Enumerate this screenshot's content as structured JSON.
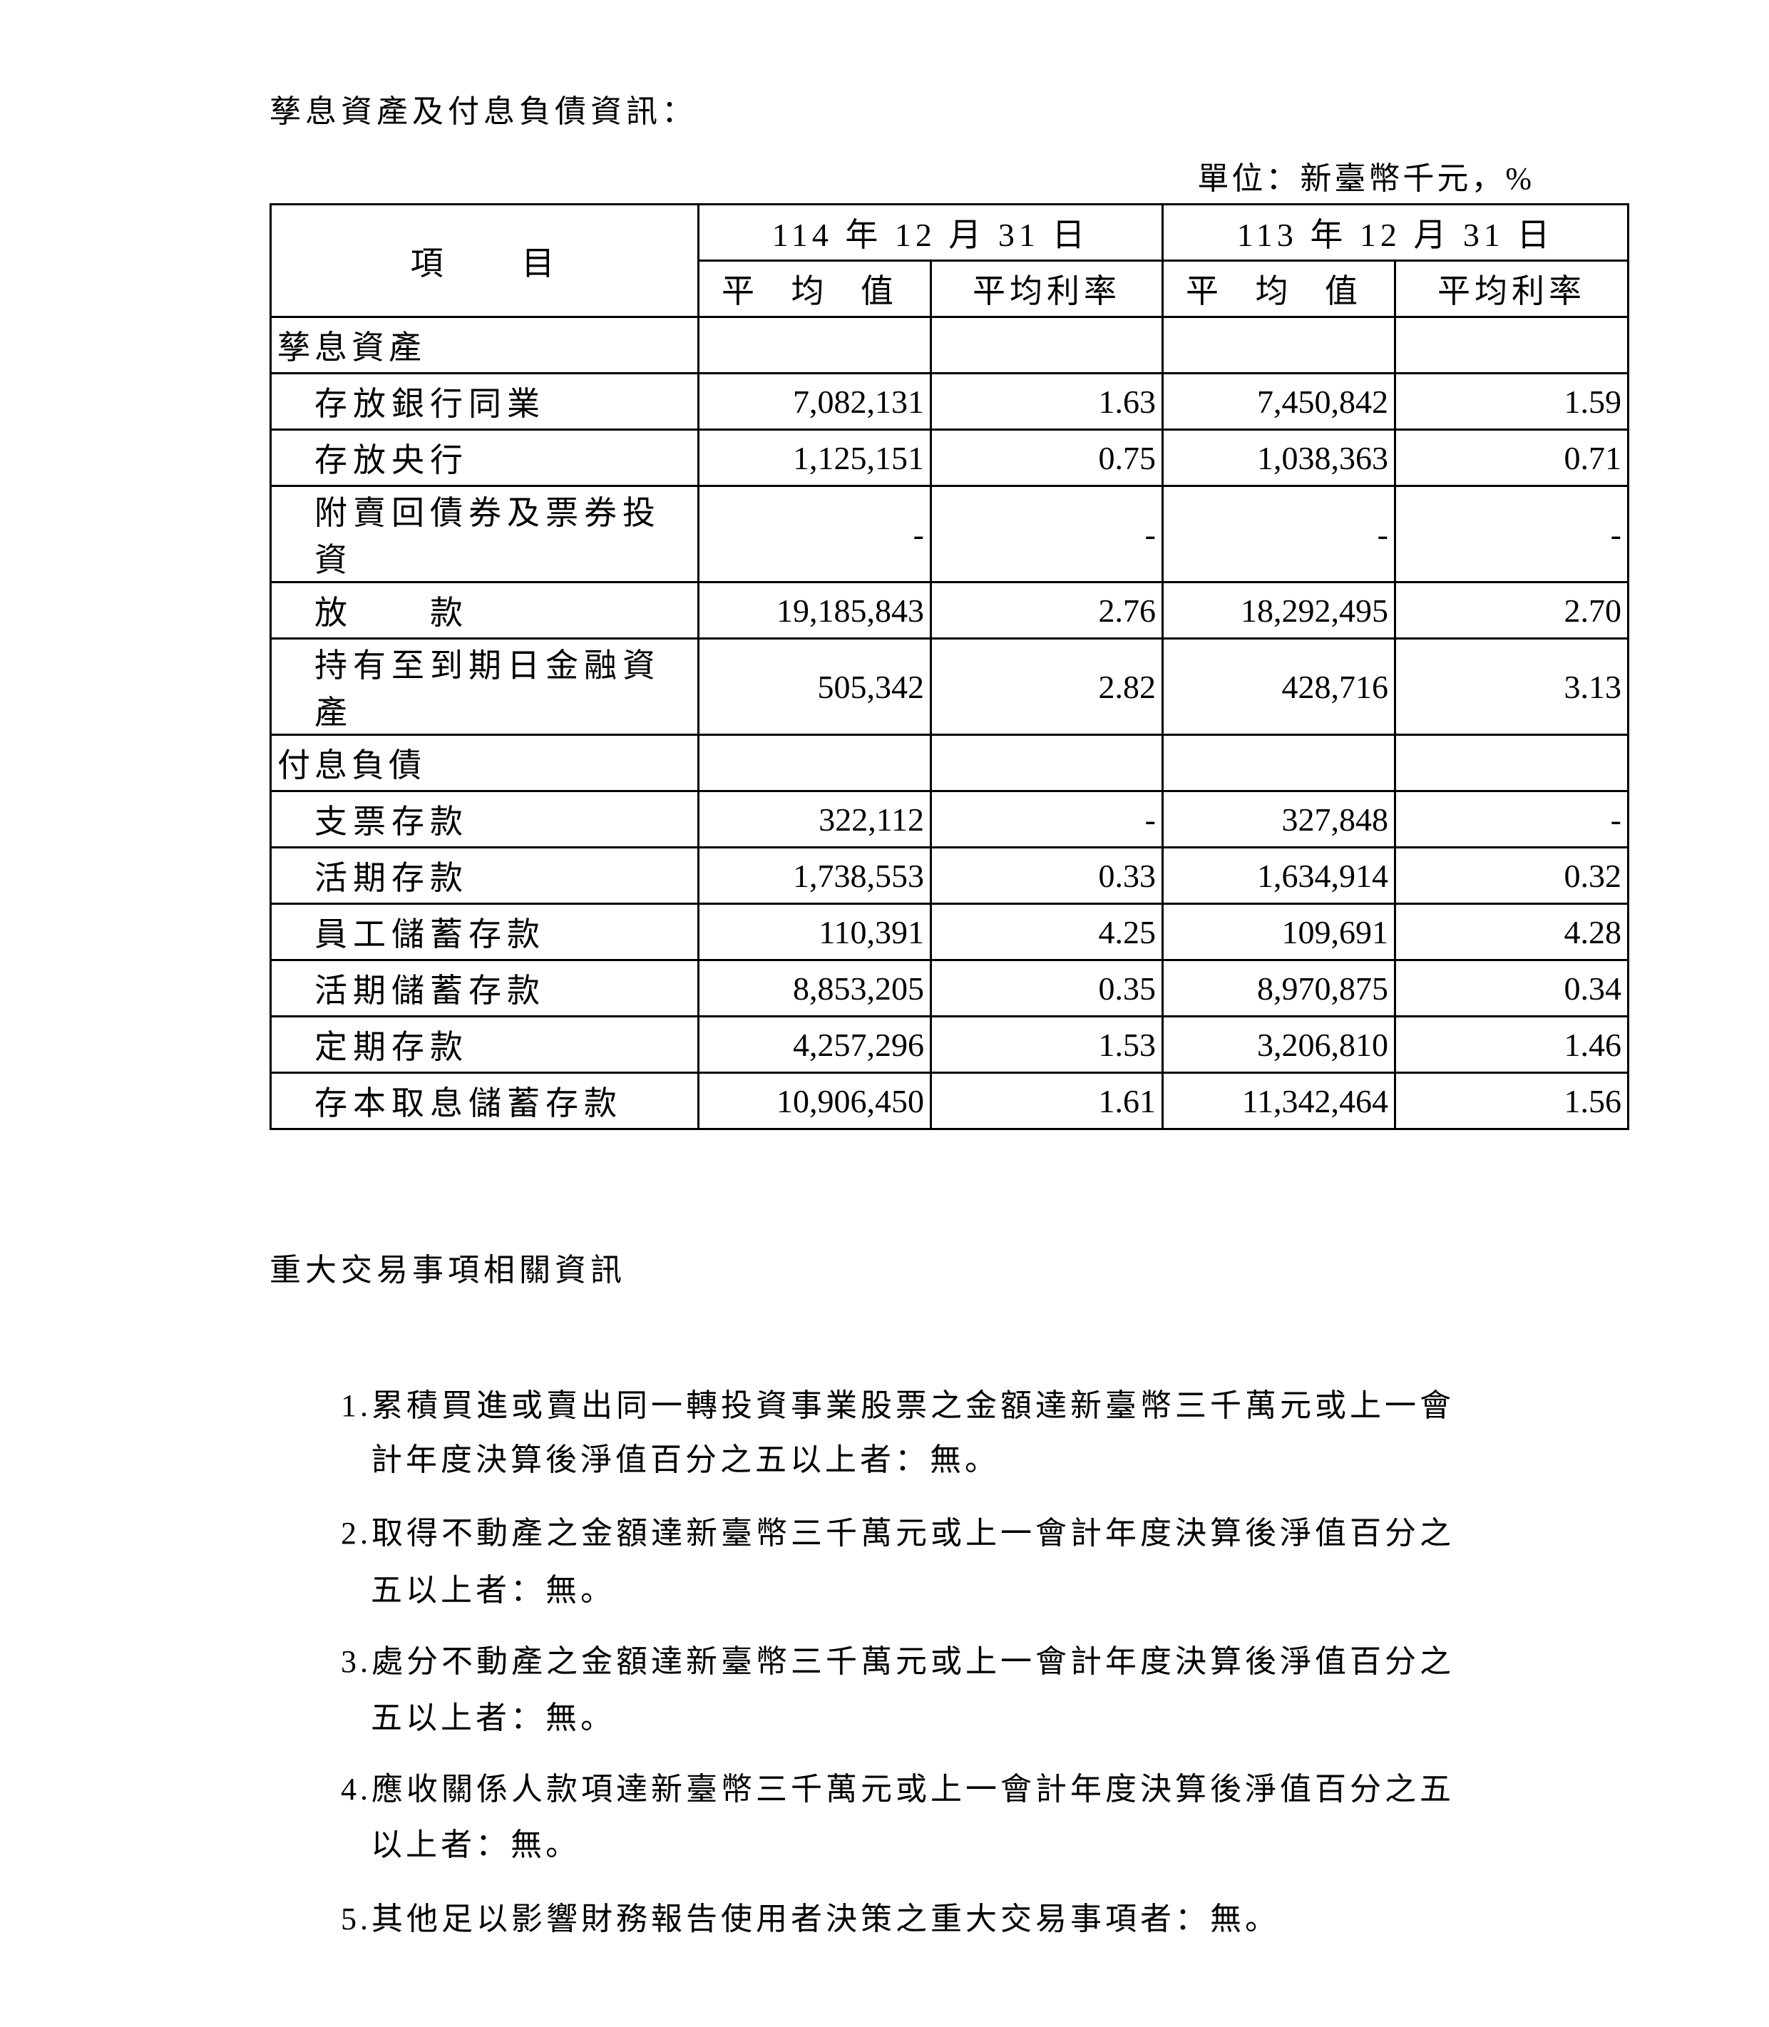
{
  "section1": {
    "title": "孳息資產及付息負債資訊：",
    "unit": "單位：新臺幣千元，%",
    "table": {
      "item_header": "項　　目",
      "periods": [
        "114 年 12 月 31 日",
        "113 年 12 月 31 日"
      ],
      "sub_headers": [
        "平 均 值",
        "平均利率",
        "平 均 值",
        "平均利率"
      ],
      "rows": [
        {
          "label": "孳息資產",
          "group": true,
          "values": [
            "",
            "",
            "",
            ""
          ]
        },
        {
          "label": "存放銀行同業",
          "values": [
            "7,082,131",
            "1.63",
            "7,450,842",
            "1.59"
          ]
        },
        {
          "label": "存放央行",
          "values": [
            "1,125,151",
            "0.75",
            "1,038,363",
            "0.71"
          ]
        },
        {
          "label": "附賣回債券及票券投資",
          "values": [
            "-",
            "-",
            "-",
            "-"
          ]
        },
        {
          "label": "放　　款",
          "values": [
            "19,185,843",
            "2.76",
            "18,292,495",
            "2.70"
          ]
        },
        {
          "label": "持有至到期日金融資產",
          "values": [
            "505,342",
            "2.82",
            "428,716",
            "3.13"
          ]
        },
        {
          "label": "付息負債",
          "group": true,
          "values": [
            "",
            "",
            "",
            ""
          ]
        },
        {
          "label": "支票存款",
          "values": [
            "322,112",
            "-",
            "327,848",
            "-"
          ]
        },
        {
          "label": "活期存款",
          "values": [
            "1,738,553",
            "0.33",
            "1,634,914",
            "0.32"
          ]
        },
        {
          "label": "員工儲蓄存款",
          "values": [
            "110,391",
            "4.25",
            "109,691",
            "4.28"
          ]
        },
        {
          "label": "活期儲蓄存款",
          "values": [
            "8,853,205",
            "0.35",
            "8,970,875",
            "0.34"
          ]
        },
        {
          "label": "定期存款",
          "values": [
            "4,257,296",
            "1.53",
            "3,206,810",
            "1.46"
          ]
        },
        {
          "label": "存本取息儲蓄存款",
          "values": [
            "10,906,450",
            "1.61",
            "11,342,464",
            "1.56"
          ]
        }
      ]
    }
  },
  "section2": {
    "title": "重大交易事項相關資訊",
    "items": [
      {
        "line1": "1.累積買進或賣出同一轉投資事業股票之金額達新臺幣三千萬元或上一會",
        "line2": "計年度決算後淨值百分之五以上者：無。"
      },
      {
        "line1": "2.取得不動產之金額達新臺幣三千萬元或上一會計年度決算後淨值百分之",
        "line2": "五以上者：無。"
      },
      {
        "line1": "3.處分不動產之金額達新臺幣三千萬元或上一會計年度決算後淨值百分之",
        "line2": "五以上者：無。"
      },
      {
        "line1": "4.應收關係人款項達新臺幣三千萬元或上一會計年度決算後淨值百分之五",
        "line2": "以上者：無。"
      },
      {
        "line1": "5.其他足以影響財務報告使用者決策之重大交易事項者：無。",
        "line2": ""
      }
    ]
  }
}
